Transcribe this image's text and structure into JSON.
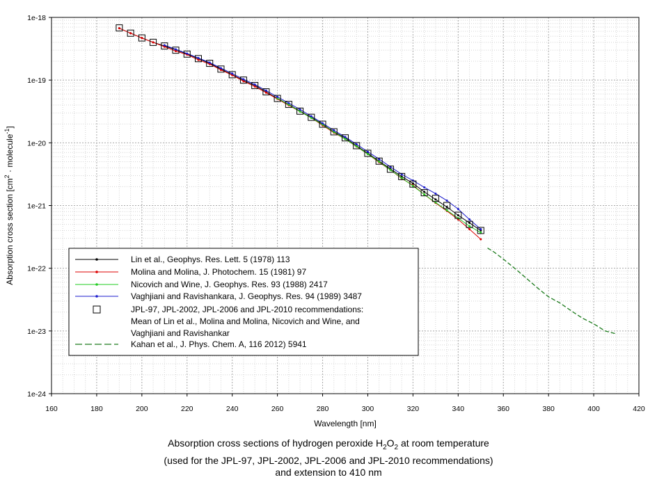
{
  "caption": {
    "line1_prefix": "Absorption cross sections of hydrogen peroxide H",
    "line1_sub1": "2",
    "line1_mid": "O",
    "line1_sub2": "2",
    "line1_suffix": " at room temperature",
    "line2": "(used for the JPL-97, JPL-2002, JPL-2006 and JPL-2010 recommendations)",
    "line3": "and extension to 410 nm"
  },
  "chart_data": {
    "type": "line",
    "title": "",
    "xlabel": "Wavelength [nm]",
    "ylabel_main": "Absorption cross section [cm",
    "ylabel_sup1": "2",
    "ylabel_mid": " · molecule",
    "ylabel_sup2": "-1",
    "ylabel_end": "]",
    "xlim": [
      160,
      420
    ],
    "ylim": [
      1e-24,
      1e-18
    ],
    "yscale": "log",
    "grid": true,
    "x_ticks": [
      "160",
      "180",
      "200",
      "220",
      "240",
      "260",
      "280",
      "300",
      "320",
      "340",
      "360",
      "380",
      "400",
      "420"
    ],
    "y_ticks": [
      "1e-24",
      "1e-23",
      "1e-22",
      "1e-21",
      "1e-20",
      "1e-19",
      "1e-18"
    ],
    "legend_position": "lower-left",
    "series": [
      {
        "name": "Lin et al., Geophys. Res. Lett. 5 (1978) 113",
        "color": "#000000",
        "style": "line-small-markers",
        "x": [
          190,
          195,
          200,
          205,
          210,
          215,
          220,
          225,
          230,
          235,
          240,
          245,
          250,
          255,
          260,
          265,
          270,
          275,
          280,
          285,
          290,
          295,
          300,
          305,
          310,
          315,
          320,
          325,
          330,
          335,
          340,
          345,
          350
        ],
        "y": [
          6.7e-19,
          5.6e-19,
          4.7e-19,
          4e-19,
          3.5e-19,
          3.05e-19,
          2.6e-19,
          2.2e-19,
          1.85e-19,
          1.5e-19,
          1.22e-19,
          9.9e-20,
          8.2e-20,
          6.5e-20,
          5.1e-20,
          4.1e-20,
          3.2e-20,
          2.55e-20,
          1.98e-20,
          1.5e-20,
          1.2e-20,
          9e-21,
          6.8e-21,
          5.1e-21,
          3.85e-21,
          2.9e-21,
          2.25e-21,
          1.65e-21,
          1.25e-21,
          9.5e-22,
          7e-22,
          5.3e-22,
          4e-22
        ]
      },
      {
        "name": "Molina and Molina, J. Photochem. 15 (1981) 97",
        "color": "#dd0000",
        "style": "line-small-markers",
        "x": [
          190,
          195,
          200,
          205,
          210,
          215,
          220,
          225,
          230,
          235,
          240,
          245,
          250,
          255,
          260,
          265,
          270,
          275,
          280,
          285,
          290,
          295,
          300,
          305,
          310,
          315,
          320,
          325,
          330,
          335,
          340,
          345,
          350
        ],
        "y": [
          6.7e-19,
          5.6e-19,
          4.7e-19,
          4e-19,
          3.4e-19,
          2.9e-19,
          2.55e-19,
          2.1e-19,
          1.8e-19,
          1.45e-19,
          1.2e-19,
          9.6e-20,
          7.9e-20,
          6.3e-20,
          5e-20,
          3.95e-20,
          3.15e-20,
          2.5e-20,
          1.9e-20,
          1.45e-20,
          1.15e-20,
          8.7e-21,
          6.6e-21,
          4.9e-21,
          3.7e-21,
          2.7e-21,
          2.1e-21,
          1.5e-21,
          1.1e-21,
          8.2e-22,
          6e-22,
          4.2e-22,
          2.9e-22
        ]
      },
      {
        "name": "Nicovich and Wine, J. Geophys. Res. 93 (1988) 2417",
        "color": "#22cc22",
        "style": "line-small-markers",
        "x": [
          260,
          265,
          270,
          275,
          280,
          285,
          290,
          295,
          300,
          305,
          310,
          315,
          320,
          325,
          330,
          335,
          340,
          345,
          350
        ],
        "y": [
          5.1e-20,
          4.05e-20,
          3.15e-20,
          2.5e-20,
          1.95e-20,
          1.48e-20,
          1.15e-20,
          8.8e-21,
          6.6e-21,
          5e-21,
          3.7e-21,
          2.75e-21,
          2.05e-21,
          1.5e-21,
          1.12e-21,
          8.4e-22,
          6.3e-22,
          4.7e-22,
          3.7e-22
        ]
      },
      {
        "name": "Vaghjiani and Ravishankara, J. Geophys. Res. 94 (1989) 3487",
        "color": "#1a1acc",
        "style": "line-small-markers",
        "x": [
          210,
          215,
          220,
          225,
          230,
          235,
          240,
          245,
          250,
          255,
          260,
          265,
          270,
          275,
          280,
          285,
          290,
          295,
          300,
          305,
          310,
          315,
          320,
          325,
          330,
          335,
          340,
          345,
          350
        ],
        "y": [
          3.6e-19,
          3.1e-19,
          2.65e-19,
          2.25e-19,
          1.9e-19,
          1.55e-19,
          1.27e-19,
          1.03e-19,
          8.5e-20,
          6.8e-20,
          5.4e-20,
          4.3e-20,
          3.4e-20,
          2.65e-20,
          2.05e-20,
          1.58e-20,
          1.24e-20,
          9.5e-21,
          7.2e-21,
          5.5e-21,
          4.15e-21,
          3.15e-21,
          2.5e-21,
          1.95e-21,
          1.55e-21,
          1.2e-21,
          8.8e-22,
          6e-22,
          4.2e-22
        ]
      },
      {
        "name": "JPL-97, JPL-2002, JPL-2006 and JPL-2010 recommendations:",
        "name_line2": "Mean of Lin et al., Molina and Molina, Nicovich and Wine, and",
        "name_line3": "Vaghjiani and Ravishankar",
        "color": "#000000",
        "style": "open-squares",
        "x": [
          190,
          195,
          200,
          205,
          210,
          215,
          220,
          225,
          230,
          235,
          240,
          245,
          250,
          255,
          260,
          265,
          270,
          275,
          280,
          285,
          290,
          295,
          300,
          305,
          310,
          315,
          320,
          325,
          330,
          335,
          340,
          345,
          350
        ],
        "y": [
          6.8e-19,
          5.6e-19,
          4.7e-19,
          4e-19,
          3.5e-19,
          3e-19,
          2.6e-19,
          2.2e-19,
          1.85e-19,
          1.5e-19,
          1.22e-19,
          1e-19,
          8.2e-20,
          6.5e-20,
          5.1e-20,
          4.1e-20,
          3.2e-20,
          2.55e-20,
          1.98e-20,
          1.5e-20,
          1.2e-20,
          9e-21,
          6.8e-21,
          5.1e-21,
          3.8e-21,
          2.9e-21,
          2.2e-21,
          1.6e-21,
          1.3e-21,
          1e-21,
          7e-22,
          5e-22,
          4e-22
        ]
      },
      {
        "name": "Kahan et al., J. Phys. Chem. A, 116 2012) 5941",
        "color": "#1a7a1a",
        "style": "dashed",
        "x": [
          353,
          356,
          360,
          365,
          370,
          375,
          380,
          385,
          390,
          395,
          400,
          405,
          410
        ],
        "y": [
          2.1e-22,
          1.8e-22,
          1.4e-22,
          1e-22,
          7e-23,
          4.9e-23,
          3.5e-23,
          2.8e-23,
          2.1e-23,
          1.6e-23,
          1.3e-23,
          1e-23,
          9e-24
        ]
      }
    ]
  }
}
